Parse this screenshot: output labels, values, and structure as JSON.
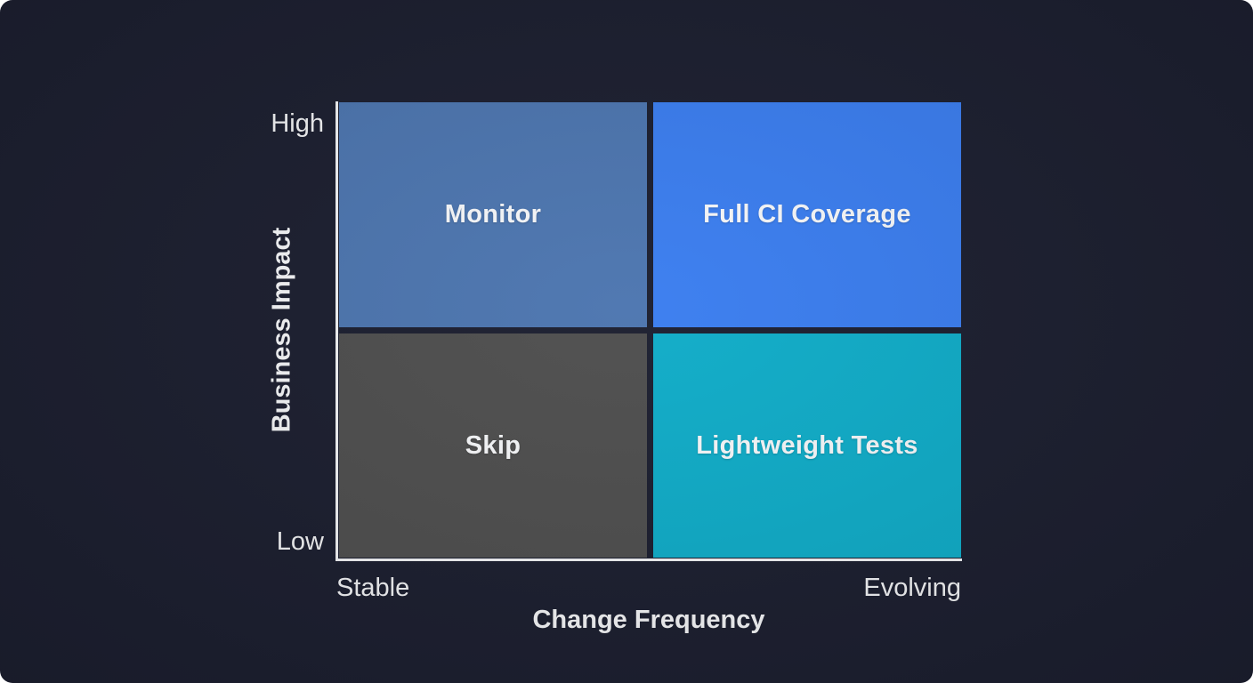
{
  "chart": {
    "type": "quadrant-matrix",
    "y_axis": {
      "title": "Business Impact",
      "top_label": "High",
      "bottom_label": "Low"
    },
    "x_axis": {
      "title": "Change Frequency",
      "left_label": "Stable",
      "right_label": "Evolving"
    },
    "quadrants": [
      {
        "position": "top-left",
        "label": "Monitor",
        "color": "#4d76b0"
      },
      {
        "position": "top-right",
        "label": "Full CI Coverage",
        "color": "#3b7ef0"
      },
      {
        "position": "bottom-left",
        "label": "Skip",
        "color": "#4f4f4f"
      },
      {
        "position": "bottom-right",
        "label": "Lightweight Tests",
        "color": "#10adc9"
      }
    ],
    "colors": {
      "panel_background": "#1c1f30",
      "axis": "#f2f3f5",
      "label_text": "#f5f6f8"
    }
  }
}
